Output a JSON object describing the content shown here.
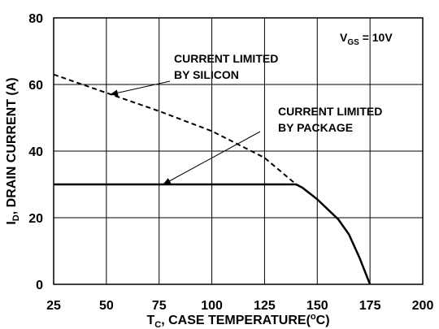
{
  "chart_data": {
    "type": "line",
    "x_ticks": [
      25,
      50,
      75,
      100,
      125,
      150,
      175,
      200
    ],
    "y_ticks": [
      0,
      20,
      40,
      60,
      80
    ],
    "xlim": [
      25,
      200
    ],
    "ylim": [
      0,
      80
    ],
    "grid": true,
    "xlabel": {
      "main": "T",
      "sub": "C",
      "rest": ", CASE TEMPERATURE(",
      "sup": "o",
      "end": "C)"
    },
    "ylabel": {
      "main": "I",
      "sub": "D",
      "rest": ", DRAIN CURRENT (A)"
    },
    "condition": {
      "main": "V",
      "sub": "GS",
      "rest": " = 10V"
    },
    "series": [
      {
        "style": "dashed",
        "points": [
          [
            25,
            63
          ],
          [
            50,
            57.5
          ],
          [
            75,
            52
          ],
          [
            100,
            46
          ],
          [
            125,
            38
          ],
          [
            140,
            30
          ]
        ]
      },
      {
        "style": "solid",
        "points": [
          [
            25,
            30
          ],
          [
            140,
            30
          ],
          [
            143,
            29
          ],
          [
            150,
            25.5
          ],
          [
            160,
            19.5
          ],
          [
            165,
            15
          ],
          [
            170,
            8
          ],
          [
            175,
            0
          ]
        ]
      }
    ],
    "annotations": [
      {
        "lines": [
          "CURRENT LIMITED",
          "BY SILICON"
        ],
        "target": [
          52,
          57
        ]
      },
      {
        "lines": [
          "CURRENT LIMITED",
          "BY PACKAGE"
        ],
        "target": [
          77,
          30
        ]
      }
    ]
  }
}
